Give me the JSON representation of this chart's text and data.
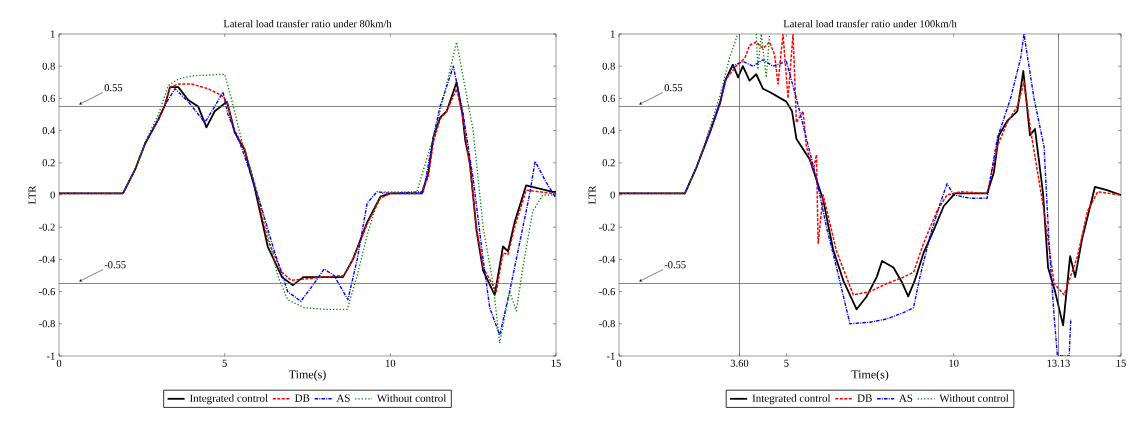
{
  "chart_data": [
    {
      "type": "line",
      "title": "Lateral load transfer ratio under 80km/h",
      "xlabel": "Time(s)",
      "ylabel": "LTR",
      "xlim": [
        0,
        15
      ],
      "ylim": [
        -1,
        1
      ],
      "xticks": [
        0,
        5,
        10,
        15
      ],
      "yticks": [
        -1,
        -0.8,
        -0.6,
        -0.4,
        -0.2,
        0,
        0.2,
        0.4,
        0.6,
        0.8,
        1
      ],
      "grid": false,
      "legend": "bottom",
      "marker": "none",
      "ref_lines": [
        {
          "axis": "y",
          "value": 0.55,
          "label": "0.55"
        },
        {
          "axis": "y",
          "value": -0.55,
          "label": "-0.55"
        }
      ],
      "series": [
        {
          "name": "Integrated control",
          "color": "#000000",
          "line_style": "solid",
          "x": [
            0,
            1.93,
            2.3,
            2.6,
            3.0,
            3.2,
            3.35,
            3.6,
            3.9,
            4.2,
            4.45,
            4.7,
            5.07,
            5.3,
            5.6,
            5.9,
            6.3,
            6.73,
            7.06,
            7.37,
            7.7,
            8.57,
            8.87,
            9.3,
            9.7,
            10.0,
            10.95,
            11.15,
            11.3,
            11.5,
            11.7,
            12.0,
            12.17,
            12.26,
            12.4,
            12.6,
            12.8,
            13.15,
            13.4,
            13.55,
            13.75,
            14.1,
            14.9,
            15
          ],
          "values": [
            0.01,
            0.01,
            0.16,
            0.32,
            0.47,
            0.56,
            0.67,
            0.67,
            0.59,
            0.55,
            0.42,
            0.52,
            0.58,
            0.39,
            0.28,
            0.05,
            -0.32,
            -0.51,
            -0.56,
            -0.51,
            -0.51,
            -0.51,
            -0.4,
            -0.17,
            -0.01,
            0.01,
            0.01,
            0.14,
            0.36,
            0.48,
            0.52,
            0.7,
            0.51,
            0.34,
            0.2,
            -0.22,
            -0.47,
            -0.62,
            -0.32,
            -0.35,
            -0.17,
            0.06,
            0.02,
            0.02
          ]
        },
        {
          "name": "DB",
          "color": "#ff0000",
          "line_style": "dashed",
          "x": [
            0,
            1.93,
            2.3,
            2.6,
            3.0,
            3.2,
            3.35,
            3.6,
            4.0,
            4.5,
            4.9,
            5.07,
            5.3,
            5.6,
            5.9,
            6.3,
            6.73,
            7.0,
            7.5,
            8.0,
            8.6,
            8.87,
            9.3,
            9.7,
            10.0,
            10.95,
            11.15,
            11.3,
            11.5,
            11.7,
            12.0,
            12.17,
            12.4,
            12.6,
            12.8,
            13.2,
            13.4,
            13.55,
            13.75,
            14.1,
            14.9,
            15
          ],
          "values": [
            0.01,
            0.01,
            0.16,
            0.32,
            0.47,
            0.56,
            0.67,
            0.69,
            0.69,
            0.66,
            0.62,
            0.58,
            0.4,
            0.29,
            0.07,
            -0.28,
            -0.48,
            -0.53,
            -0.52,
            -0.51,
            -0.5,
            -0.4,
            -0.18,
            -0.02,
            0.01,
            0.01,
            0.12,
            0.33,
            0.47,
            0.52,
            0.66,
            0.5,
            0.18,
            -0.2,
            -0.45,
            -0.6,
            -0.36,
            -0.37,
            -0.2,
            0.03,
            0.01,
            0.01
          ]
        },
        {
          "name": "AS",
          "color": "#0000ff",
          "line_style": "dashdot",
          "x": [
            0,
            1.93,
            2.3,
            2.6,
            3.0,
            3.2,
            3.5,
            3.9,
            4.4,
            4.7,
            4.95,
            5.1,
            5.5,
            6.0,
            6.5,
            6.9,
            7.3,
            7.7,
            8.0,
            8.3,
            8.72,
            9.0,
            9.3,
            9.6,
            10.0,
            11.0,
            11.3,
            11.5,
            11.9,
            12.2,
            12.5,
            12.8,
            13.0,
            13.3,
            13.6,
            13.9,
            14.2,
            14.37,
            14.7,
            15
          ],
          "values": [
            0.01,
            0.01,
            0.16,
            0.32,
            0.47,
            0.56,
            0.66,
            0.58,
            0.45,
            0.55,
            0.64,
            0.5,
            0.3,
            0.0,
            -0.35,
            -0.6,
            -0.66,
            -0.55,
            -0.46,
            -0.5,
            -0.65,
            -0.4,
            -0.05,
            0.02,
            0.01,
            0.02,
            0.36,
            0.55,
            0.8,
            0.5,
            0.1,
            -0.4,
            -0.7,
            -0.87,
            -0.6,
            -0.3,
            0.0,
            0.21,
            0.08,
            -0.02
          ]
        },
        {
          "name": "Without control",
          "color": "#008000",
          "line_style": "dotted",
          "x": [
            0,
            1.93,
            2.3,
            2.6,
            3.0,
            3.3,
            3.6,
            4.0,
            5.0,
            5.2,
            5.5,
            5.8,
            6.2,
            6.6,
            6.9,
            7.4,
            8.0,
            8.7,
            9.0,
            9.3,
            9.6,
            9.8,
            10.8,
            11.3,
            11.6,
            12.0,
            12.3,
            12.5,
            12.8,
            13.1,
            13.3,
            13.6,
            13.8,
            14.0,
            14.3,
            14.6,
            15
          ],
          "values": [
            0.01,
            0.01,
            0.16,
            0.33,
            0.5,
            0.68,
            0.72,
            0.74,
            0.75,
            0.6,
            0.35,
            0.15,
            -0.15,
            -0.5,
            -0.65,
            -0.7,
            -0.71,
            -0.71,
            -0.5,
            -0.25,
            -0.05,
            0.02,
            0.02,
            0.36,
            0.6,
            0.95,
            0.62,
            0.4,
            -0.2,
            -0.55,
            -0.92,
            -0.6,
            -0.72,
            -0.45,
            -0.1,
            0.0,
            0.0
          ]
        }
      ]
    },
    {
      "type": "line",
      "title": "Lateral load transfer ratio under 100km/h",
      "xlabel": "Time(s)",
      "ylabel": "LTR",
      "xlim": [
        0,
        15
      ],
      "ylim": [
        -1,
        1
      ],
      "xticks": [
        0,
        {
          "value": 3.6,
          "label": "3.60"
        },
        5,
        10,
        {
          "value": 13.13,
          "label": "13.13"
        },
        15
      ],
      "yticks": [
        -1,
        -0.8,
        -0.6,
        -0.4,
        -0.2,
        0,
        0.2,
        0.4,
        0.6,
        0.8,
        1
      ],
      "grid": false,
      "legend": "bottom",
      "marker": "none",
      "ref_lines": [
        {
          "axis": "y",
          "value": 0.55,
          "label": "0.55"
        },
        {
          "axis": "y",
          "value": -0.55,
          "label": "-0.55"
        },
        {
          "axis": "x",
          "value": 3.6,
          "label": null
        },
        {
          "axis": "x",
          "value": 13.13,
          "label": null
        }
      ],
      "series": [
        {
          "name": "Integrated control",
          "color": "#000000",
          "line_style": "solid",
          "x": [
            0,
            1.97,
            2.33,
            2.72,
            3.02,
            3.17,
            3.4,
            3.56,
            3.7,
            3.9,
            4.1,
            4.3,
            4.5,
            5.0,
            5.17,
            5.3,
            5.7,
            6.1,
            6.4,
            6.7,
            7.1,
            7.4,
            7.7,
            7.86,
            8.2,
            8.45,
            8.64,
            8.84,
            9.1,
            9.4,
            9.7,
            10.04,
            11.0,
            11.2,
            11.35,
            11.6,
            11.9,
            12.08,
            12.28,
            12.43,
            12.67,
            12.82,
            13.03,
            13.27,
            13.48,
            13.63,
            13.83,
            14.22,
            14.58,
            15
          ],
          "values": [
            0.01,
            0.01,
            0.18,
            0.39,
            0.57,
            0.71,
            0.81,
            0.73,
            0.8,
            0.71,
            0.75,
            0.66,
            0.64,
            0.58,
            0.52,
            0.35,
            0.22,
            -0.03,
            -0.34,
            -0.53,
            -0.71,
            -0.63,
            -0.51,
            -0.41,
            -0.45,
            -0.54,
            -0.63,
            -0.53,
            -0.36,
            -0.22,
            -0.07,
            0.01,
            0.01,
            0.14,
            0.37,
            0.46,
            0.52,
            0.77,
            0.37,
            0.41,
            0.01,
            -0.45,
            -0.6,
            -0.81,
            -0.38,
            -0.51,
            -0.28,
            0.05,
            0.03,
            0.0
          ]
        },
        {
          "name": "DB",
          "color": "#ff0000",
          "line_style": "dashed",
          "x": [
            0,
            1.97,
            2.33,
            2.72,
            3.02,
            3.2,
            3.5,
            3.76,
            3.9,
            4.1,
            4.3,
            4.5,
            4.65,
            4.75,
            4.9,
            5.05,
            5.2,
            5.3,
            5.5,
            5.6,
            5.8,
            5.9,
            5.95,
            6.1,
            6.5,
            7.0,
            7.5,
            8.0,
            8.5,
            8.8,
            9.1,
            9.5,
            9.8,
            10.2,
            11.0,
            11.3,
            11.6,
            11.9,
            12.1,
            12.3,
            12.7,
            13.0,
            13.3,
            13.5,
            13.7,
            14.0,
            14.3,
            15
          ],
          "values": [
            0.01,
            0.01,
            0.18,
            0.4,
            0.58,
            0.72,
            0.8,
            0.85,
            0.93,
            0.95,
            0.91,
            0.95,
            0.87,
            0.69,
            1.0,
            0.6,
            1.0,
            0.45,
            0.52,
            0.3,
            0.15,
            0.25,
            -0.3,
            0.0,
            -0.35,
            -0.62,
            -0.6,
            -0.55,
            -0.51,
            -0.48,
            -0.3,
            -0.1,
            0.0,
            0.02,
            0.01,
            0.3,
            0.45,
            0.55,
            0.7,
            0.4,
            -0.1,
            -0.55,
            -0.62,
            -0.5,
            -0.38,
            -0.1,
            0.02,
            0.0
          ]
        },
        {
          "name": "AS",
          "color": "#0000ff",
          "line_style": "dashdot",
          "x": [
            0,
            1.97,
            2.33,
            2.72,
            3.02,
            3.2,
            3.4,
            3.7,
            4.0,
            4.3,
            4.6,
            5.0,
            5.3,
            5.6,
            5.9,
            6.2,
            6.5,
            6.9,
            7.5,
            8.0,
            8.5,
            8.8,
            9.0,
            9.3,
            9.6,
            9.8,
            10.0,
            10.5,
            11.0,
            11.3,
            11.7,
            12.0,
            12.1,
            12.4,
            12.7,
            12.85,
            13.0,
            13.1,
            13.45,
            13.5
          ],
          "values": [
            0.01,
            0.01,
            0.18,
            0.4,
            0.58,
            0.72,
            0.8,
            0.83,
            0.8,
            0.84,
            0.8,
            0.83,
            0.6,
            0.35,
            0.1,
            -0.2,
            -0.45,
            -0.8,
            -0.79,
            -0.77,
            -0.73,
            -0.7,
            -0.5,
            -0.25,
            -0.05,
            0.07,
            0.0,
            -0.02,
            -0.02,
            0.35,
            0.6,
            0.85,
            1.0,
            0.6,
            0.3,
            -0.3,
            -0.75,
            -1.0,
            -1.0,
            -0.77
          ]
        },
        {
          "name": "Without control",
          "color": "#008000",
          "line_style": "dotted",
          "x": [
            0,
            1.97,
            2.33,
            2.72,
            3.02,
            3.3,
            3.55,
            3.8,
            4.1,
            4.15,
            4.25,
            4.4,
            4.5
          ],
          "values": [
            0.01,
            0.01,
            0.18,
            0.42,
            0.62,
            0.85,
            1.0,
            null,
            1.0,
            0.78,
            1.0,
            0.73,
            1.0
          ]
        }
      ]
    }
  ]
}
